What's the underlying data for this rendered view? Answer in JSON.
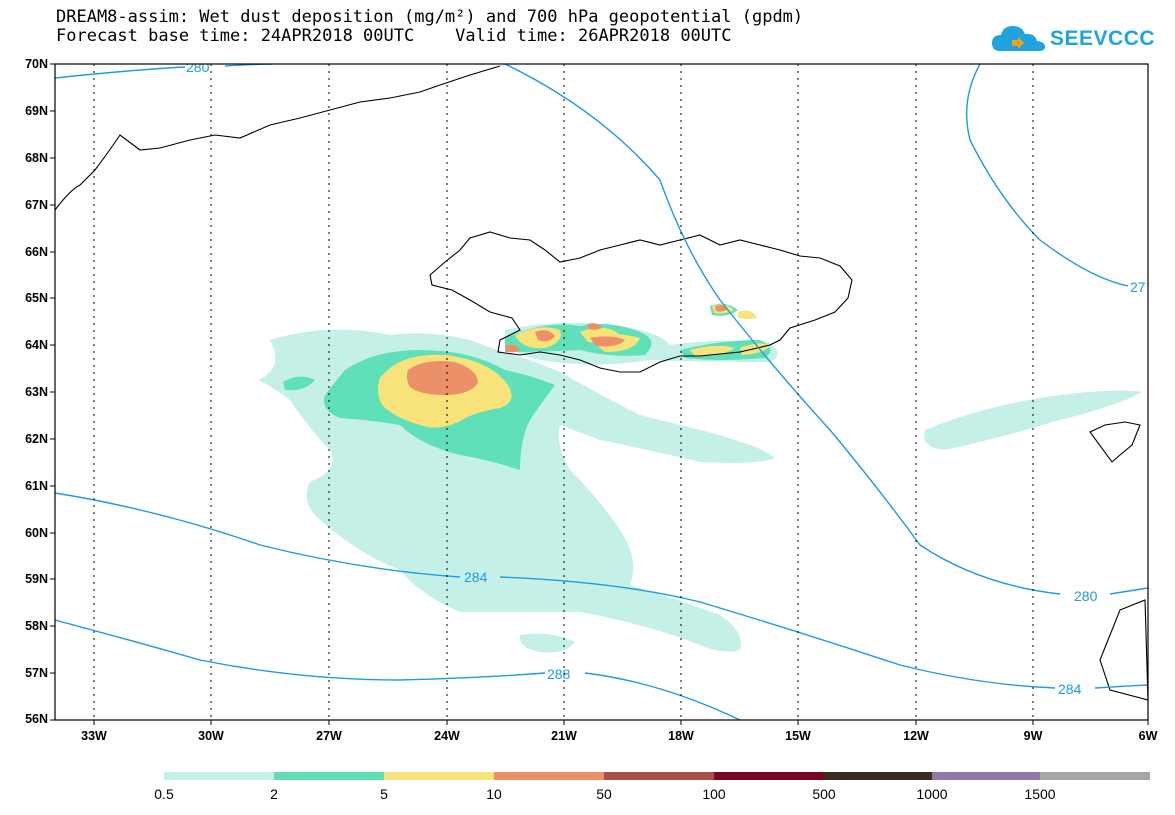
{
  "title": {
    "line1": "DREAM8-assim: Wet dust deposition (mg/m²) and 700 hPa geopotential (gpdm)",
    "line2": "Forecast base time: 24APR2018 00UTC    Valid time: 26APR2018 00UTC"
  },
  "logo": {
    "text": "SEEVCCC",
    "icon": "cloud-logo-icon",
    "color": "#1fa4e0"
  },
  "map": {
    "lat_labels": [
      "70N",
      "69N",
      "68N",
      "67N",
      "66N",
      "65N",
      "64N",
      "63N",
      "62N",
      "61N",
      "60N",
      "59N",
      "58N",
      "57N",
      "56N"
    ],
    "lon_labels": [
      "33W",
      "30W",
      "27W",
      "24W",
      "21W",
      "18W",
      "15W",
      "12W",
      "9W",
      "6W"
    ],
    "contour_labels": [
      "280",
      "284",
      "288",
      "280",
      "284",
      "27"
    ],
    "contour_color": "#1f9be0",
    "coast_color": "#000000"
  },
  "colorbar": {
    "colors": [
      "#c5f0e8",
      "#5fe0b8",
      "#f7e37a",
      "#eb9069",
      "#a8504a",
      "#7d0525",
      "#3c2a1c",
      "#9276aa",
      "#a6a6a6"
    ],
    "labels": [
      "0.5",
      "2",
      "5",
      "10",
      "50",
      "100",
      "500",
      "1000",
      "1500"
    ]
  }
}
